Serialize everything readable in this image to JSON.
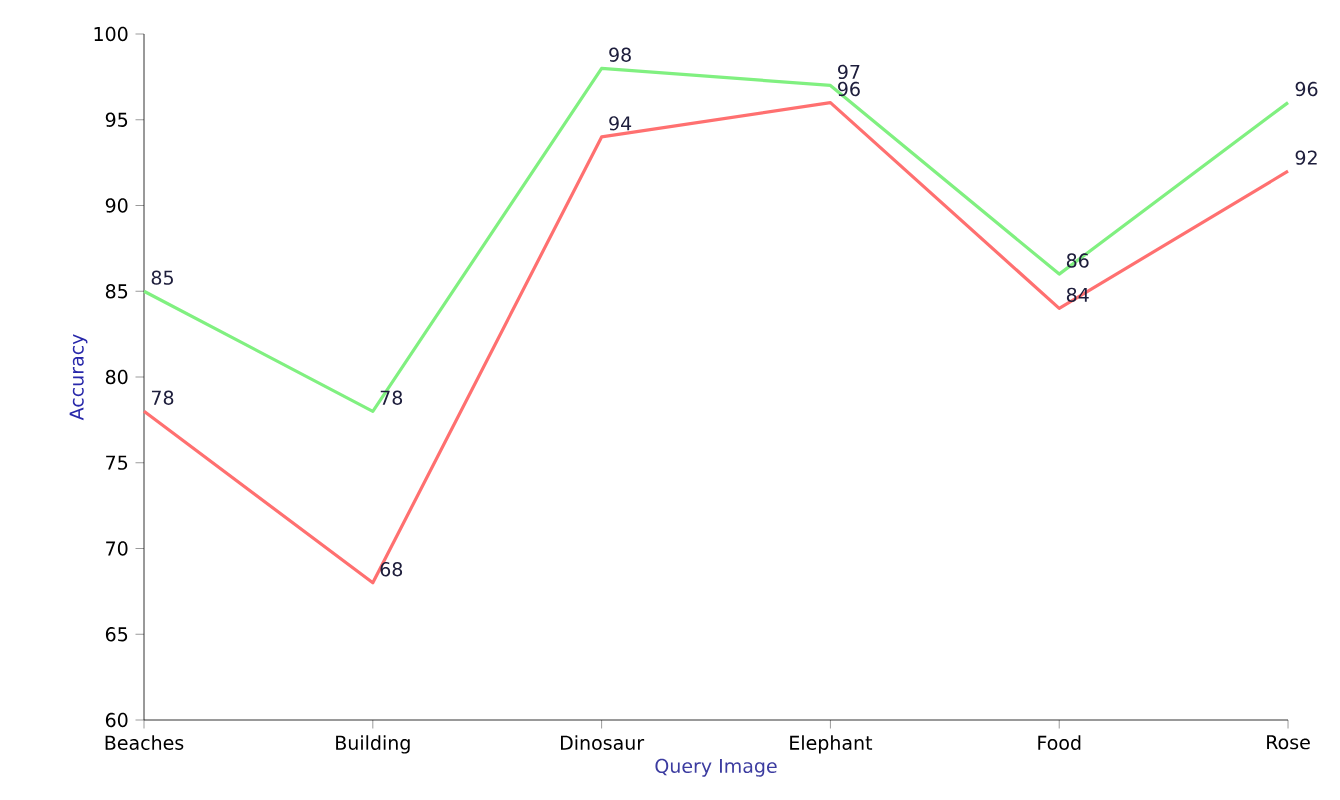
{
  "chart_data": {
    "type": "line",
    "xlabel": "Query Image",
    "ylabel": "Accuracy",
    "categories": [
      "Beaches",
      "Building",
      "Dinosaur",
      "Elephant",
      "Food",
      "Rose"
    ],
    "series": [
      {
        "color": "#80f080",
        "values": [
          85,
          78,
          98,
          97,
          86,
          96
        ]
      },
      {
        "color": "#ff7070",
        "values": [
          78,
          68,
          94,
          96,
          84,
          92
        ]
      }
    ],
    "ylim": [
      60,
      100
    ],
    "yticks": [
      60,
      65,
      70,
      75,
      80,
      85,
      90,
      95,
      100
    ],
    "data_labels": true,
    "grid": false,
    "marker": "none",
    "line_style": "solid"
  }
}
